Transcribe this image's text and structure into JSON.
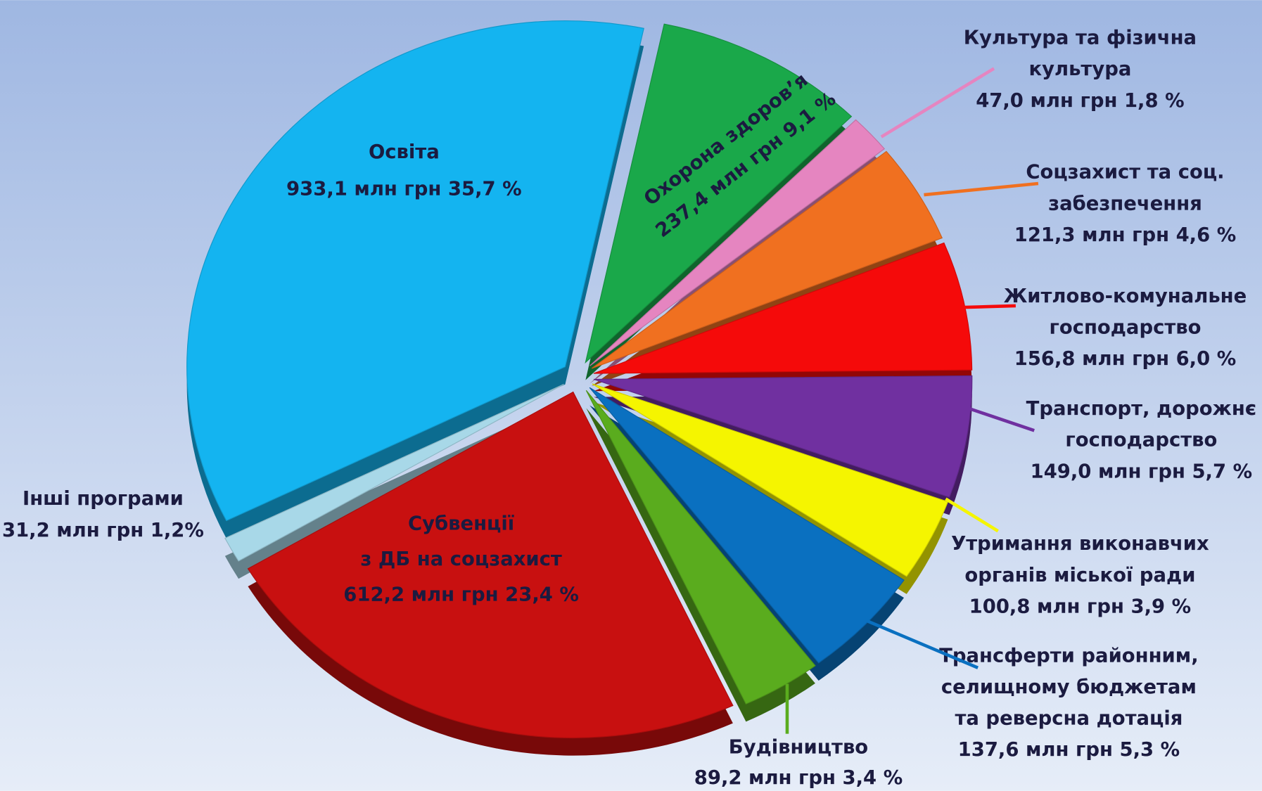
{
  "chart_data": {
    "type": "pie",
    "categories": [
      [
        "Охорона здоров’я"
      ],
      [
        "Культура та фізична",
        "культура"
      ],
      [
        "Соцзахист та соц.",
        "забезпечення"
      ],
      [
        "Житлово-комунальне",
        "господарство"
      ],
      [
        "Транспорт, дорожнє",
        "господарство"
      ],
      [
        "Утримання виконавчих",
        "органів міської ради"
      ],
      [
        "Трансферти районним,",
        "селищному бюджетам",
        "та реверсна дотація"
      ],
      [
        "Будівництво"
      ],
      [
        "Субвенції",
        "з ДБ на соцзахист"
      ],
      [
        "Інші програми"
      ],
      [
        "Освіта"
      ]
    ],
    "values": [
      237.4,
      47.0,
      121.3,
      156.8,
      149.0,
      100.8,
      137.6,
      89.2,
      612.2,
      31.2,
      933.1
    ],
    "value_labels": [
      "237,4 млн грн 9,1 %",
      "47,0 млн грн 1,8 %",
      "121,3 млн грн 4,6 %",
      "156,8 млн грн 6,0 %",
      "149,0 млн грн 5,7 %",
      "100,8 млн грн 3,9 %",
      "137,6 млн грн 5,3 %",
      "89,2 млн грн 3,4 %",
      "612,2 млн грн 23,4 %",
      "31,2 млн грн 1,2%",
      "933,1 млн грн 35,7 %"
    ],
    "colors": [
      "#1aa84a",
      "#e585c0",
      "#f07020",
      "#f50a0a",
      "#7030a0",
      "#f5f500",
      "#0a70c0",
      "#5aac1e",
      "#c81010",
      "#a8d8e8",
      "#14b4f0"
    ]
  }
}
